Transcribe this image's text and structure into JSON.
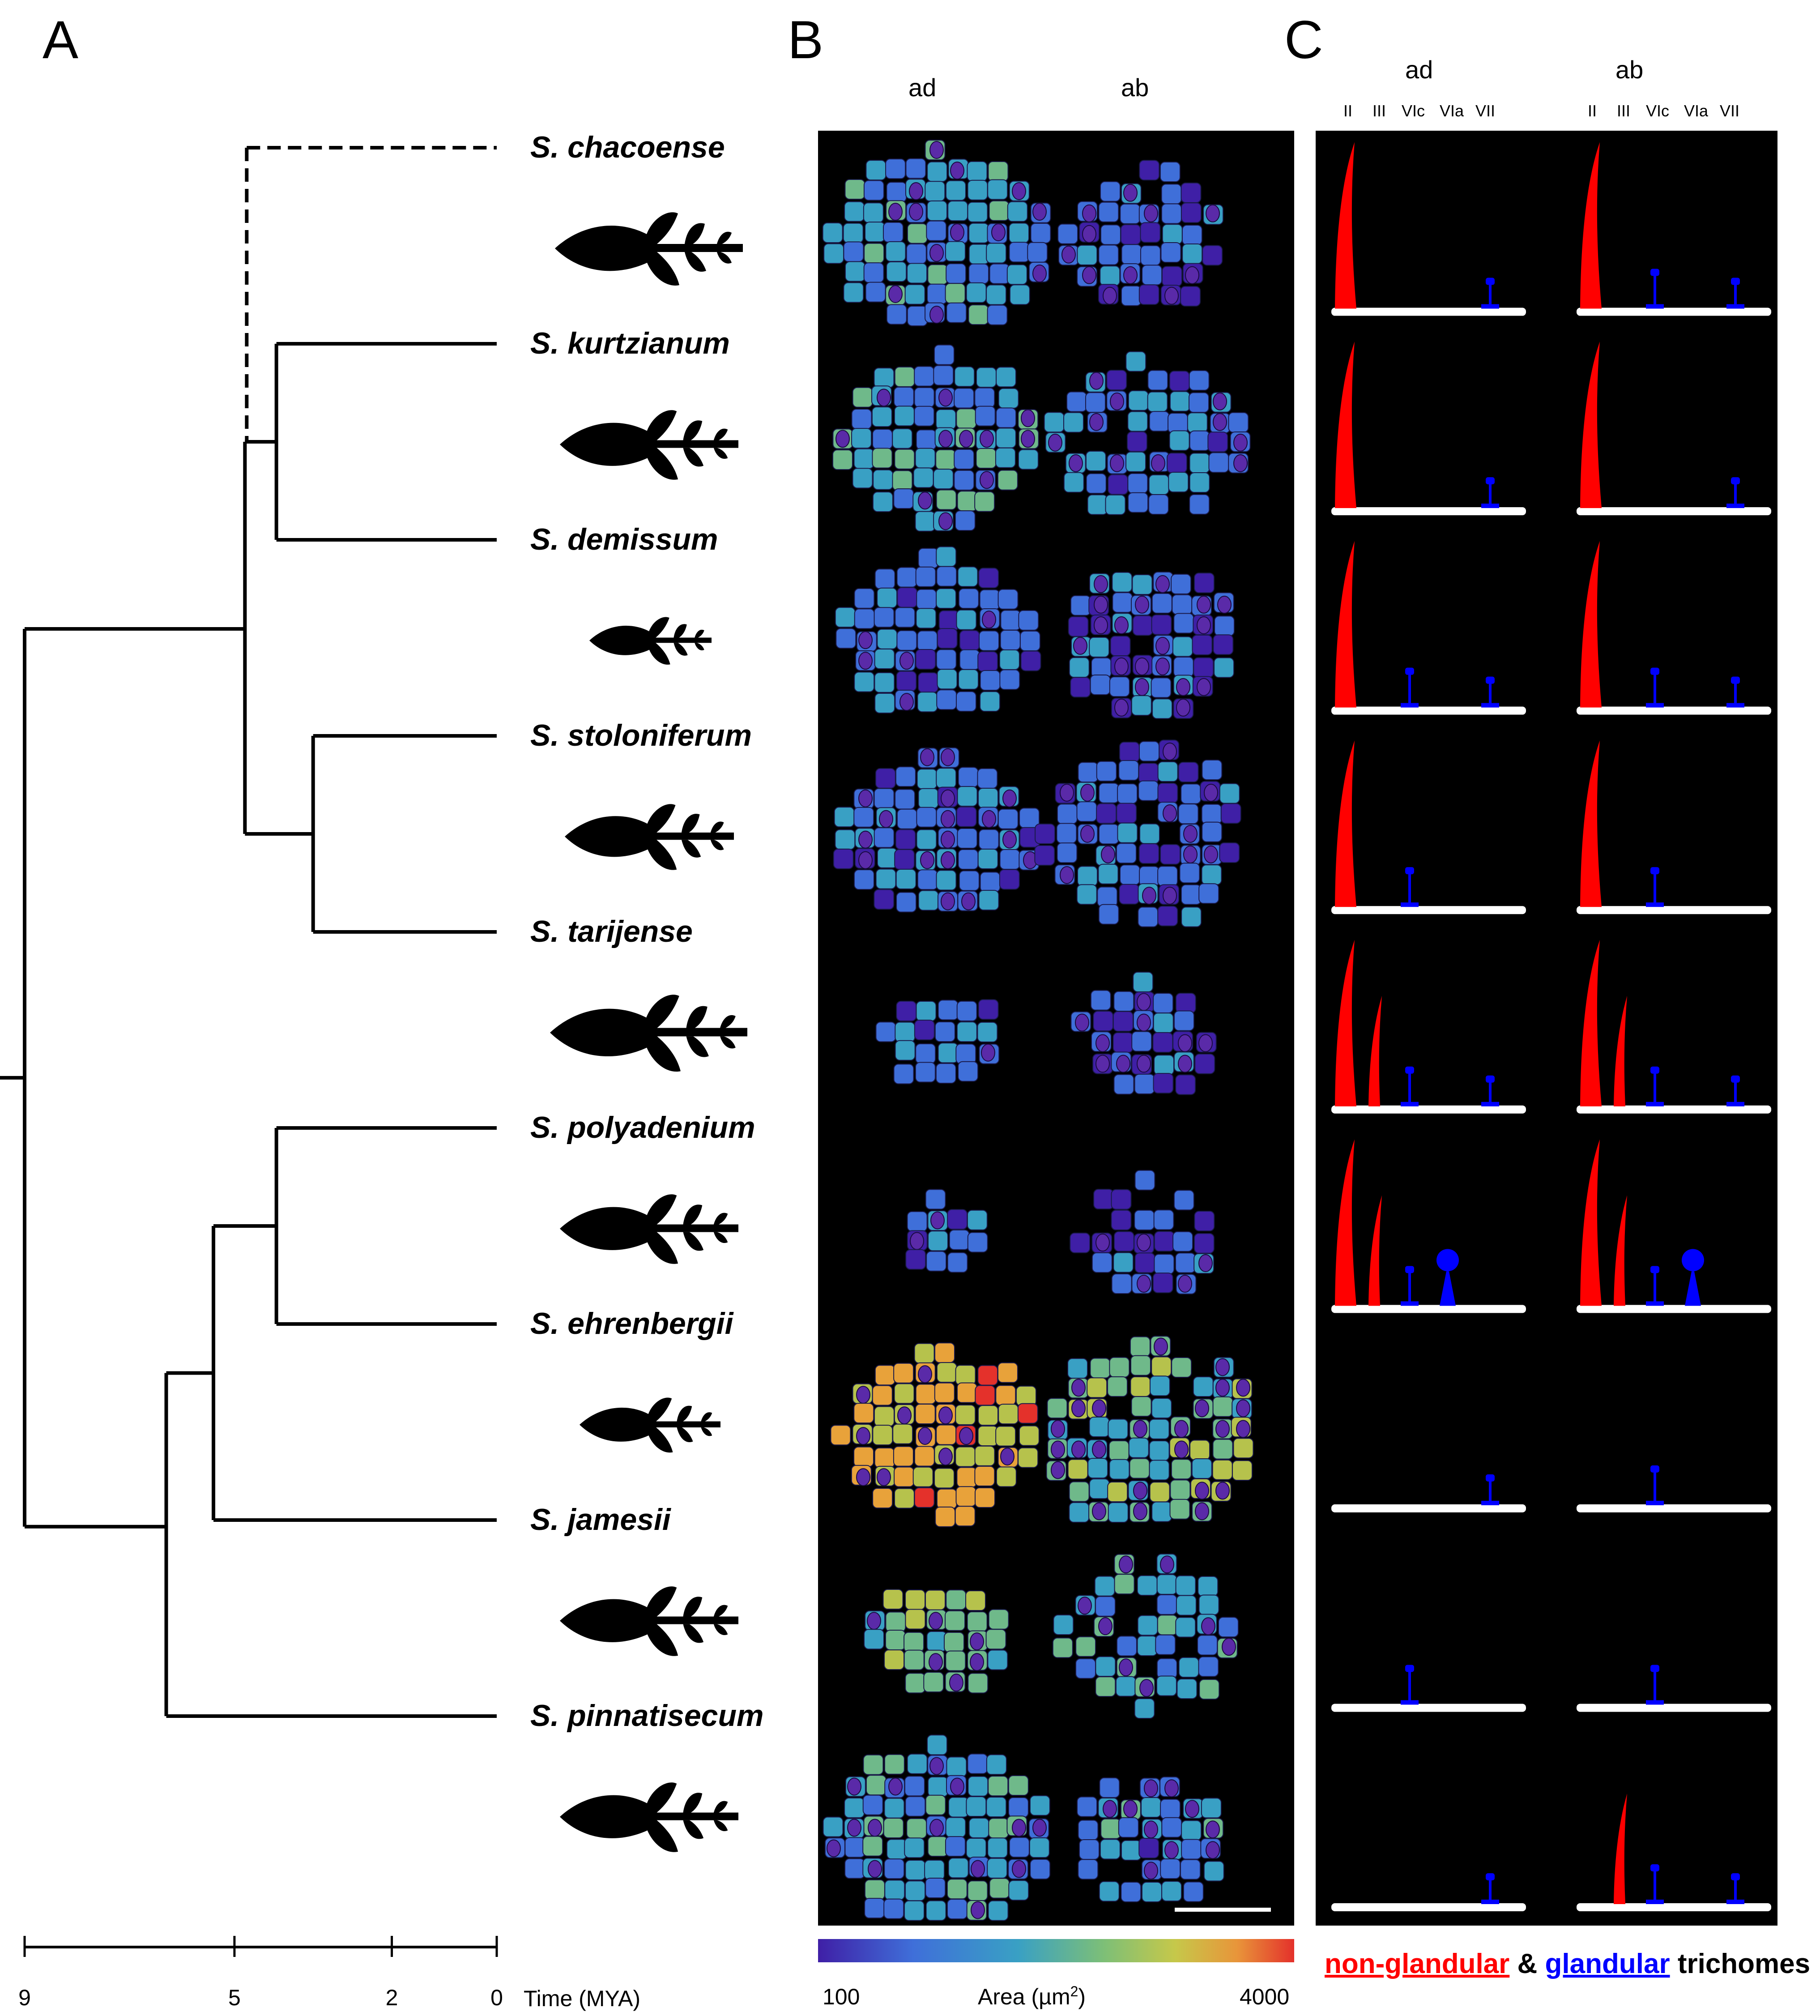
{
  "panels": {
    "a": "A",
    "b": "B",
    "c": "C"
  },
  "species": [
    {
      "name": "S. chacoense",
      "time": 4.8,
      "dashed": true
    },
    {
      "name": "S. kurtzianum",
      "time": 4.2
    },
    {
      "name": "S. demissum",
      "time": 4.2
    },
    {
      "name": "S. stoloniferum",
      "time": 3.5
    },
    {
      "name": "S. tarijense",
      "time": 3.5
    },
    {
      "name": "S. polyadenium",
      "time": 4.2
    },
    {
      "name": "S. ehrenbergii",
      "time": 4.2
    },
    {
      "name": "S. jamesii",
      "time": 5.4
    },
    {
      "name": "S. pinnatisecum",
      "time": 6.3
    }
  ],
  "tree_nodes_mya": {
    "root": 9.6,
    "upper": 9.0,
    "lower": 9.0,
    "chac_rest": 4.8,
    "kd": 4.2,
    "st": 3.5,
    "pj": 6.3,
    "pe_j": 5.4,
    "pe": 4.2
  },
  "time_axis": {
    "label": "Time (MYA)",
    "ticks": [
      9,
      5,
      2,
      0
    ],
    "max": 9
  },
  "surfaces": {
    "ad": "ad",
    "ab": "ab"
  },
  "trichome_types": [
    "II",
    "III",
    "VIc",
    "VIa",
    "VII"
  ],
  "trichomes": [
    {
      "ad": [
        "II",
        "VII"
      ],
      "ab": [
        "II",
        "VIc",
        "VII"
      ]
    },
    {
      "ad": [
        "II",
        "VII"
      ],
      "ab": [
        "II",
        "VII"
      ]
    },
    {
      "ad": [
        "II",
        "VIc",
        "VII"
      ],
      "ab": [
        "II",
        "VIc",
        "VII"
      ]
    },
    {
      "ad": [
        "II",
        "VIc"
      ],
      "ab": [
        "II",
        "VIc"
      ]
    },
    {
      "ad": [
        "II",
        "III",
        "VIc",
        "VII"
      ],
      "ab": [
        "II",
        "III",
        "VIc",
        "VII"
      ]
    },
    {
      "ad": [
        "II",
        "III",
        "VIc",
        "VIa"
      ],
      "ab": [
        "II",
        "III",
        "VIc",
        "VIa"
      ]
    },
    {
      "ad": [
        "VII"
      ],
      "ab": [
        "VIc"
      ]
    },
    {
      "ad": [
        "VIc"
      ],
      "ab": [
        "VIc"
      ]
    },
    {
      "ad": [
        "VII"
      ],
      "ab": [
        "III",
        "VIc",
        "VII"
      ]
    }
  ],
  "colorbar": {
    "min": "100",
    "max": "4000",
    "label": "Area (µm",
    "sup": "2",
    "close": ")"
  },
  "legend": {
    "nonglandular": "non-glandular",
    "amp": "&",
    "glandular": "glandular",
    "suffix": "trichomes"
  },
  "colors": {
    "nonglandular": "#ff0000",
    "glandular": "#0000ff",
    "scale": [
      "#3f1fa6",
      "#3f6fd9",
      "#39a0c4",
      "#6fb98a",
      "#b6c24c",
      "#e8a23a",
      "#e4312b"
    ]
  }
}
